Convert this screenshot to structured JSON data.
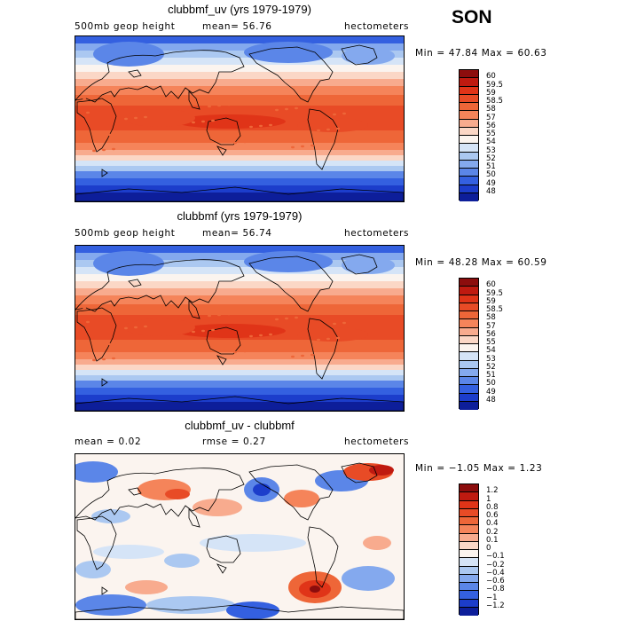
{
  "season": "SON",
  "panels": [
    {
      "title": "clubbmf_uv (yrs 1979-1979)",
      "left_sub": "500mb geop height",
      "mean_text": "mean=  56.76",
      "units": "hectometers",
      "minmax": "Min =  47.84 Max =  60.63",
      "kind": "field"
    },
    {
      "title": "clubbmf (yrs 1979-1979)",
      "left_sub": "500mb geop height",
      "mean_text": "mean=  56.74",
      "units": "hectometers",
      "minmax": "Min =  48.28 Max =  60.59",
      "kind": "field"
    },
    {
      "title": "clubbmf_uv - clubbmf",
      "left_sub": "mean =   0.02",
      "mean_text": "rmse =   0.27",
      "units": "hectometers",
      "minmax": "Min =  −1.05 Max =   1.23",
      "kind": "diff"
    }
  ],
  "chart_data": [
    {
      "type": "heatmap",
      "title": "clubbmf_uv (yrs 1979-1979)",
      "variable": "500mb geop height",
      "units": "hectometers",
      "mean": 56.76,
      "min": 47.84,
      "max": 60.63,
      "contour_levels": [
        48,
        49,
        50,
        51,
        52,
        53,
        54,
        55,
        56,
        57,
        58,
        58.5,
        59,
        59.5,
        60
      ],
      "legend_labels": [
        "60",
        "59.5",
        "59",
        "58.5",
        "58",
        "57",
        "56",
        "55",
        "54",
        "53",
        "52",
        "51",
        "50",
        "49",
        "48"
      ]
    },
    {
      "type": "heatmap",
      "title": "clubbmf (yrs 1979-1979)",
      "variable": "500mb geop height",
      "units": "hectometers",
      "mean": 56.74,
      "min": 48.28,
      "max": 60.59,
      "contour_levels": [
        48,
        49,
        50,
        51,
        52,
        53,
        54,
        55,
        56,
        57,
        58,
        58.5,
        59,
        59.5,
        60
      ],
      "legend_labels": [
        "60",
        "59.5",
        "59",
        "58.5",
        "58",
        "57",
        "56",
        "55",
        "54",
        "53",
        "52",
        "51",
        "50",
        "49",
        "48"
      ]
    },
    {
      "type": "heatmap",
      "title": "clubbmf_uv - clubbmf",
      "units": "hectometers",
      "mean": 0.02,
      "rmse": 0.27,
      "min": -1.05,
      "max": 1.23,
      "contour_levels": [
        -1.2,
        -1,
        -0.8,
        -0.6,
        -0.4,
        -0.2,
        -0.1,
        0,
        0.1,
        0.2,
        0.4,
        0.6,
        0.8,
        1,
        1.2
      ],
      "legend_labels": [
        "1.2",
        "1",
        "0.8",
        "0.6",
        "0.4",
        "0.2",
        "0.1",
        "0",
        "−0.1",
        "−0.2",
        "−0.4",
        "−0.6",
        "−0.8",
        "−1",
        "−1.2"
      ]
    }
  ],
  "colors": {
    "scale": [
      "#8c0d0d",
      "#bf1a10",
      "#e03418",
      "#e84b26",
      "#ee6638",
      "#f5845a",
      "#f8ab8e",
      "#fbd7c6",
      "#fbf4ef",
      "#d5e4f7",
      "#abc8f1",
      "#84a9ee",
      "#5b86e8",
      "#3460e0",
      "#1c3dcb",
      "#0d1e9a",
      "#030a6a"
    ]
  }
}
